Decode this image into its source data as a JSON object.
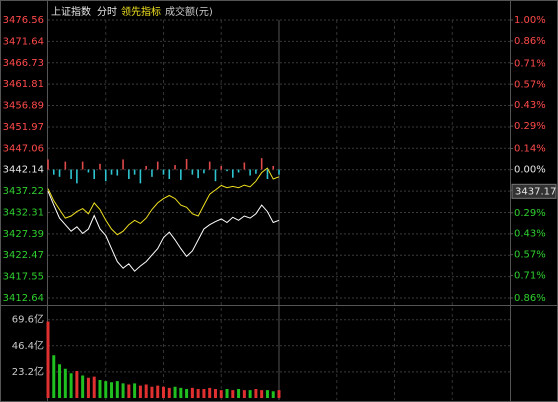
{
  "chart_data": [
    {
      "type": "line",
      "title": "上证指数",
      "subtitle": "分时",
      "current_price": 3437.17,
      "xlim": [
        0,
        240
      ],
      "x": [
        0,
        3,
        6,
        9,
        12,
        15,
        18,
        21,
        24,
        27,
        30,
        33,
        36,
        39,
        42,
        45,
        48,
        51,
        54,
        57,
        60,
        63,
        66,
        69,
        72,
        75,
        78,
        81,
        84,
        87,
        90,
        93,
        96,
        99,
        102,
        105,
        108,
        111,
        114,
        117,
        120
      ],
      "ylim": [
        3412.64,
        3476.56
      ],
      "yticks": [
        3476.56,
        3471.64,
        3466.73,
        3461.81,
        3456.89,
        3451.97,
        3447.06,
        3442.14,
        3437.22,
        3432.31,
        3427.39,
        3422.47,
        3417.55,
        3412.64
      ],
      "y2lim": [
        -0.86,
        1.0
      ],
      "y2ticks": [
        {
          "value": 1.0,
          "label": "1.00%"
        },
        {
          "value": 0.86,
          "label": "0.86%"
        },
        {
          "value": 0.71,
          "label": "0.71%"
        },
        {
          "value": 0.57,
          "label": "0.57%"
        },
        {
          "value": 0.43,
          "label": "0.43%"
        },
        {
          "value": 0.29,
          "label": "0.29%"
        },
        {
          "value": 0.14,
          "label": "0.14%"
        },
        {
          "value": 0.0,
          "label": "0.00%"
        },
        {
          "value": -0.14,
          "label": "0.14%"
        },
        {
          "value": -0.29,
          "label": "0.29%"
        },
        {
          "value": -0.43,
          "label": "0.43%"
        },
        {
          "value": -0.57,
          "label": "0.57%"
        },
        {
          "value": -0.71,
          "label": "0.71%"
        },
        {
          "value": -0.86,
          "label": "0.86%"
        }
      ],
      "up_color": "#ff4a4a",
      "flat_color": "#e6e6e6",
      "down_color": "#2fd02f",
      "series": [
        {
          "name": "上证指数",
          "color": "#ffffff",
          "values": [
            3437.2,
            3434,
            3431,
            3429.5,
            3428,
            3429,
            3427.5,
            3428.5,
            3431.6,
            3428.5,
            3427,
            3424,
            3421,
            3419.5,
            3420.5,
            3418.8,
            3420,
            3421,
            3422.5,
            3424,
            3426.5,
            3427.8,
            3426,
            3424,
            3422.2,
            3423.5,
            3426,
            3428.5,
            3429.5,
            3430.2,
            3430.8,
            3430,
            3431.2,
            3430.5,
            3431.5,
            3431,
            3432,
            3434,
            3432.5,
            3430,
            3430.5
          ]
        },
        {
          "name": "领先指标",
          "color": "#f0e020",
          "values": [
            3437.8,
            3435,
            3433,
            3431,
            3431.5,
            3432.5,
            3433.2,
            3432,
            3434.5,
            3433,
            3430.5,
            3428.5,
            3427.2,
            3428,
            3429.5,
            3430.5,
            3429.8,
            3431,
            3433,
            3434.5,
            3435.5,
            3436.2,
            3435.5,
            3434,
            3433.5,
            3432,
            3431.5,
            3434,
            3436.5,
            3437.5,
            3438.5,
            3438,
            3438.3,
            3438,
            3438.6,
            3438.2,
            3439.5,
            3441.5,
            3442.5,
            3440,
            3440.5
          ]
        },
        {
          "type": "bar",
          "color": "#e04a4a",
          "down_color": "#2ec4d0",
          "values": [
            3444.5,
            3441,
            3440.5,
            3444,
            3440,
            3439,
            3444,
            3441.5,
            3440,
            3443.5,
            3439.5,
            3441,
            3440.8,
            3444.5,
            3440,
            3441,
            3439,
            3443,
            3440.5,
            3444,
            3441,
            3440,
            3443.2,
            3439.8,
            3444.6,
            3441,
            3440.2,
            3441.3,
            3444,
            3439.5,
            3443,
            3441.8,
            3440.3,
            3441.5,
            3443.8,
            3440.8,
            3441.2,
            3444.8,
            3440,
            3443,
            3441
          ]
        }
      ]
    },
    {
      "type": "bar",
      "title": "成交额(元)",
      "xlim": [
        0,
        240
      ],
      "x": [
        0,
        3,
        6,
        9,
        12,
        15,
        18,
        21,
        24,
        27,
        30,
        33,
        36,
        39,
        42,
        45,
        48,
        51,
        54,
        57,
        60,
        63,
        66,
        69,
        72,
        75,
        78,
        81,
        84,
        87,
        90,
        93,
        96,
        99,
        102,
        105,
        108,
        111,
        114,
        117,
        120
      ],
      "values": [
        68,
        38,
        30,
        26,
        22,
        24,
        20,
        18,
        19,
        16,
        15,
        14,
        15,
        13,
        12,
        13,
        11,
        12,
        10,
        11,
        10,
        9,
        10,
        9,
        8,
        9,
        8,
        8,
        9,
        8,
        7,
        8,
        7,
        8,
        7,
        7,
        8,
        7,
        7,
        6,
        7
      ],
      "ylim": [
        0,
        80
      ],
      "yticks": [
        {
          "value": 69.6,
          "label": "69.6亿"
        },
        {
          "value": 46.4,
          "label": "46.4亿"
        },
        {
          "value": 23.2,
          "label": "23.2亿"
        }
      ],
      "color": "#e03030",
      "down_color": "#20c020"
    }
  ]
}
